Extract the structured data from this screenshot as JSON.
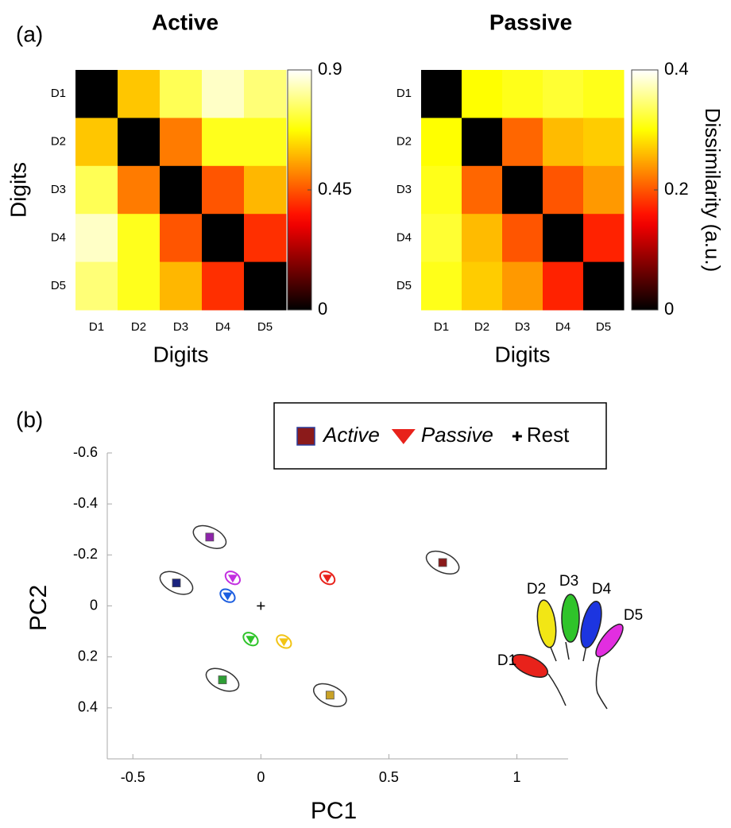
{
  "chart_data": [
    {
      "type": "heatmap",
      "panel_label": "(a)",
      "title": "Active",
      "categories": [
        "D1",
        "D2",
        "D3",
        "D4",
        "D5"
      ],
      "values": [
        [
          0,
          0.6,
          0.75,
          0.85,
          0.78
        ],
        [
          0.6,
          0,
          0.5,
          0.7,
          0.7
        ],
        [
          0.75,
          0.5,
          0,
          0.45,
          0.58
        ],
        [
          0.85,
          0.7,
          0.45,
          0,
          0.4
        ],
        [
          0.78,
          0.7,
          0.58,
          0.4,
          0
        ]
      ],
      "colormap": "hot",
      "clim": [
        0,
        0.9
      ],
      "cticks": [
        0,
        0.45,
        0.9
      ],
      "xlabel": "Digits",
      "ylabel": "Digits"
    },
    {
      "type": "heatmap",
      "title": "Passive",
      "categories": [
        "D1",
        "D2",
        "D3",
        "D4",
        "D5"
      ],
      "values": [
        [
          0,
          0.3,
          0.31,
          0.32,
          0.31
        ],
        [
          0.3,
          0,
          0.21,
          0.26,
          0.27
        ],
        [
          0.31,
          0.21,
          0,
          0.2,
          0.24
        ],
        [
          0.32,
          0.26,
          0.2,
          0,
          0.17
        ],
        [
          0.31,
          0.27,
          0.24,
          0.17,
          0
        ]
      ],
      "colormap": "hot",
      "clim": [
        0,
        0.4
      ],
      "cticks": [
        0,
        0.2,
        0.4
      ],
      "clabel": "Dissimilarity (a.u.)",
      "xlabel": "Digits"
    },
    {
      "type": "scatter",
      "panel_label": "(b)",
      "xlabel": "PC1",
      "ylabel": "PC2",
      "xlim": [
        -0.6,
        1.2
      ],
      "ylim": [
        -0.6,
        0.6
      ],
      "y_reversed": true,
      "xticks": [
        -0.5,
        0,
        0.5,
        1
      ],
      "yticks": [
        -0.6,
        -0.4,
        -0.2,
        0,
        0.2,
        0.4
      ],
      "categories": [
        "D1",
        "D2",
        "D3",
        "D4",
        "D5"
      ],
      "digit_colors": [
        "#e8221b",
        "#f2e615",
        "#2fc42a",
        "#1c35e0",
        "#e22ee0"
      ],
      "legend": "top",
      "series": [
        {
          "name": "Active",
          "marker": "square",
          "color": "#8b1a1a",
          "colors": [
            "#8b1a1a",
            "#c9a227",
            "#2e9e35",
            "#1a237e",
            "#8e24aa"
          ],
          "x": [
            0.71,
            0.27,
            -0.15,
            -0.33,
            -0.2
          ],
          "y": [
            -0.17,
            0.35,
            0.29,
            -0.09,
            -0.27
          ]
        },
        {
          "name": "Passive",
          "marker": "triangle",
          "color": "#e8221b",
          "colors": [
            "#e8221b",
            "#f2c415",
            "#2fc42a",
            "#1c5ee0",
            "#c22ee0"
          ],
          "x": [
            0.26,
            0.09,
            -0.04,
            -0.13,
            -0.11
          ],
          "y": [
            -0.11,
            0.14,
            0.13,
            -0.04,
            -0.11
          ]
        },
        {
          "name": "Rest",
          "marker": "plus",
          "color": "#000000",
          "x": [
            0
          ],
          "y": [
            0
          ]
        }
      ]
    }
  ]
}
